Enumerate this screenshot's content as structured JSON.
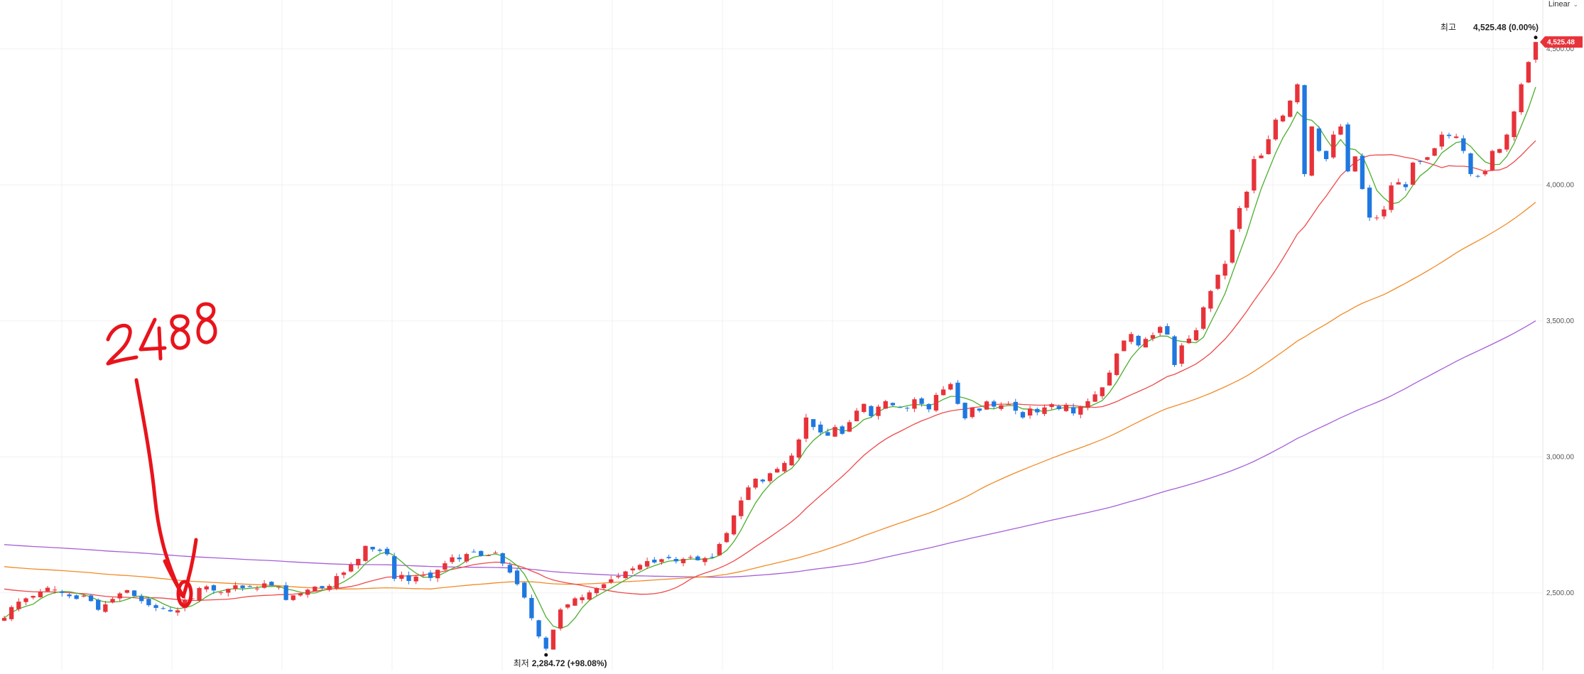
{
  "scale_selector": {
    "label": "Linear",
    "chevron": "chevron-down-icon"
  },
  "colors": {
    "up": "#e8323a",
    "down": "#1f78e0",
    "ma5": "#4caf2e",
    "ma20": "#ee4a4a",
    "ma60": "#f28a26",
    "ma120": "#a65fd6",
    "price_tag_bg": "#e8323a",
    "grid": "#f0f0f0"
  },
  "chart_data": {
    "type": "candlestick",
    "ylim": [
      2215,
      4680
    ],
    "y_ticks": [
      2500,
      3000,
      3500,
      4000,
      4500
    ],
    "y_tick_labels": [
      "2,500.00",
      "3,000.00",
      "3,500.00",
      "4,000.00",
      "4,500.00"
    ],
    "grid": true,
    "scale": "linear",
    "current_price_label": "4,525.48",
    "max_annotation": {
      "label": "최고",
      "value": "4,525.48 (0.00%)"
    },
    "min_annotation": {
      "label": "최저",
      "value": "2,284.72 (+98.08%)"
    },
    "handwritten_note": "2488",
    "closes": [
      2408,
      2448,
      2468,
      2480,
      2489,
      2505,
      2519,
      2512,
      2500,
      2488,
      2478,
      2490,
      2470,
      2438,
      2458,
      2478,
      2498,
      2510,
      2489,
      2470,
      2455,
      2445,
      2442,
      2432,
      2436,
      2474,
      2480,
      2518,
      2524,
      2509,
      2502,
      2515,
      2528,
      2518,
      2522,
      2516,
      2535,
      2527,
      2522,
      2474,
      2491,
      2498,
      2512,
      2523,
      2518,
      2526,
      2562,
      2575,
      2604,
      2625,
      2673,
      2660,
      2655,
      2642,
      2552,
      2566,
      2544,
      2560,
      2566,
      2555,
      2585,
      2609,
      2631,
      2624,
      2643,
      2651,
      2636,
      2638,
      2648,
      2608,
      2575,
      2532,
      2483,
      2407,
      2340,
      2295,
      2365,
      2439,
      2458,
      2480,
      2484,
      2502,
      2518,
      2532,
      2550,
      2562,
      2579,
      2590,
      2603,
      2617,
      2612,
      2624,
      2628,
      2616,
      2625,
      2632,
      2620,
      2628,
      2632,
      2680,
      2720,
      2785,
      2840,
      2888,
      2920,
      2910,
      2940,
      2956,
      2978,
      3005,
      3064,
      3145,
      3110,
      3090,
      3078,
      3110,
      3085,
      3128,
      3170,
      3195,
      3150,
      3185,
      3205,
      3190,
      3182,
      3178,
      3212,
      3195,
      3175,
      3228,
      3248,
      3268,
      3195,
      3142,
      3182,
      3170,
      3204,
      3185,
      3190,
      3194,
      3170,
      3145,
      3178,
      3164,
      3182,
      3194,
      3176,
      3192,
      3160,
      3185,
      3205,
      3230,
      3256,
      3310,
      3380,
      3428,
      3452,
      3410,
      3434,
      3448,
      3478,
      3450,
      3338,
      3410,
      3435,
      3466,
      3550,
      3610,
      3670,
      3710,
      3835,
      3915,
      3975,
      4095,
      4108,
      4168,
      4240,
      4255,
      4310,
      4370,
      4040,
      4215,
      4125,
      4095,
      4185,
      4215,
      4050,
      4105,
      3985,
      3880,
      3880,
      3910,
      3998,
      4010,
      3992,
      4082,
      4085,
      4102,
      4135,
      4185,
      4180,
      4178,
      4125,
      4040,
      4032,
      4050,
      4125,
      4132,
      4185,
      4270,
      4370,
      4452,
      4525.48
    ]
  }
}
